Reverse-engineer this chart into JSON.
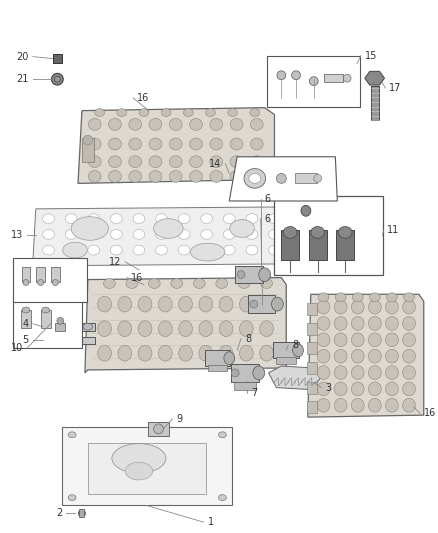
{
  "bg_color": "#ffffff",
  "fig_width": 4.38,
  "fig_height": 5.33,
  "dpi": 100,
  "line_color": "#666666",
  "label_color": "#333333",
  "label_fontsize": 7.0,
  "part_fill": "#e8e8e8",
  "part_edge": "#555555"
}
